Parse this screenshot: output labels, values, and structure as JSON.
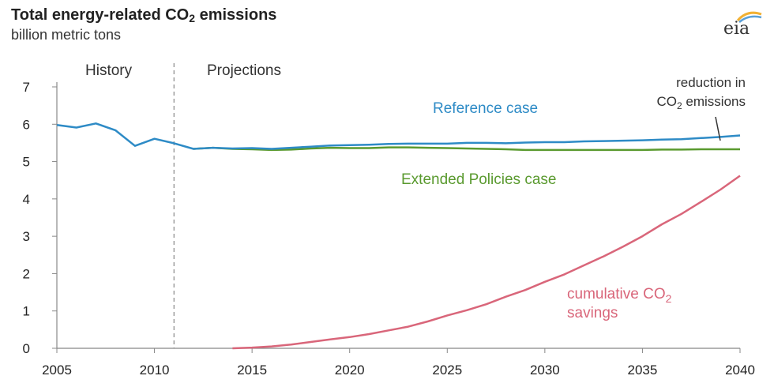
{
  "header": {
    "title_main": "Total energy-related CO",
    "title_sub": "2",
    "title_end": " emissions",
    "units": "billion metric tons",
    "logo_text": "eia"
  },
  "chart_data": {
    "type": "line",
    "ylim": [
      0,
      7
    ],
    "xlim": [
      2005,
      2040
    ],
    "x_ticks": [
      "2005",
      "2010",
      "2015",
      "2020",
      "2025",
      "2030",
      "2035",
      "2040"
    ],
    "y_ticks": [
      "0",
      "1",
      "2",
      "3",
      "4",
      "5",
      "6",
      "7"
    ],
    "divider_year": 2011,
    "period_labels": {
      "history": "History",
      "projections": "Projections"
    },
    "colors": {
      "reference": "#2e8bc6",
      "extended": "#5a9a2f",
      "savings": "#d9667a",
      "axis": "#888888"
    },
    "series": [
      {
        "name": "Reference case",
        "x": [
          2005,
          2006,
          2007,
          2008,
          2009,
          2010,
          2011,
          2012,
          2013,
          2014,
          2015,
          2016,
          2017,
          2018,
          2019,
          2020,
          2021,
          2022,
          2023,
          2024,
          2025,
          2026,
          2027,
          2028,
          2029,
          2030,
          2031,
          2032,
          2033,
          2034,
          2035,
          2036,
          2037,
          2038,
          2039,
          2040
        ],
        "values": [
          5.98,
          5.91,
          6.02,
          5.84,
          5.42,
          5.61,
          5.49,
          5.34,
          5.37,
          5.35,
          5.36,
          5.34,
          5.37,
          5.4,
          5.43,
          5.44,
          5.45,
          5.47,
          5.48,
          5.48,
          5.48,
          5.5,
          5.5,
          5.49,
          5.51,
          5.52,
          5.52,
          5.54,
          5.55,
          5.56,
          5.57,
          5.59,
          5.6,
          5.63,
          5.66,
          5.7
        ]
      },
      {
        "name": "Extended Policies case",
        "x": [
          2012,
          2013,
          2014,
          2015,
          2016,
          2017,
          2018,
          2019,
          2020,
          2021,
          2022,
          2023,
          2024,
          2025,
          2026,
          2027,
          2028,
          2029,
          2030,
          2031,
          2032,
          2033,
          2034,
          2035,
          2036,
          2037,
          2038,
          2039,
          2040
        ],
        "values": [
          5.34,
          5.37,
          5.34,
          5.33,
          5.31,
          5.32,
          5.35,
          5.37,
          5.36,
          5.36,
          5.38,
          5.38,
          5.37,
          5.36,
          5.35,
          5.34,
          5.33,
          5.31,
          5.31,
          5.31,
          5.31,
          5.31,
          5.31,
          5.31,
          5.32,
          5.32,
          5.33,
          5.33,
          5.33
        ]
      },
      {
        "name": "cumulative CO2 savings",
        "x": [
          2014,
          2015,
          2016,
          2017,
          2018,
          2019,
          2020,
          2021,
          2022,
          2023,
          2024,
          2025,
          2026,
          2027,
          2028,
          2029,
          2030,
          2031,
          2032,
          2033,
          2034,
          2035,
          2036,
          2037,
          2038,
          2039,
          2040
        ],
        "values": [
          0.0,
          0.02,
          0.05,
          0.1,
          0.17,
          0.24,
          0.3,
          0.38,
          0.48,
          0.58,
          0.72,
          0.88,
          1.02,
          1.18,
          1.38,
          1.56,
          1.78,
          1.98,
          2.22,
          2.46,
          2.72,
          3.0,
          3.32,
          3.6,
          3.92,
          4.25,
          4.62
        ]
      }
    ],
    "annotations": {
      "reference_label": "Reference case",
      "extended_label": "Extended Policies case",
      "reduction_line1": "reduction in",
      "reduction_co": "CO",
      "reduction_sub": "2",
      "reduction_end": " emissions",
      "savings_line1": "cumulative CO",
      "savings_sub": "2",
      "savings_line2": "savings"
    }
  }
}
